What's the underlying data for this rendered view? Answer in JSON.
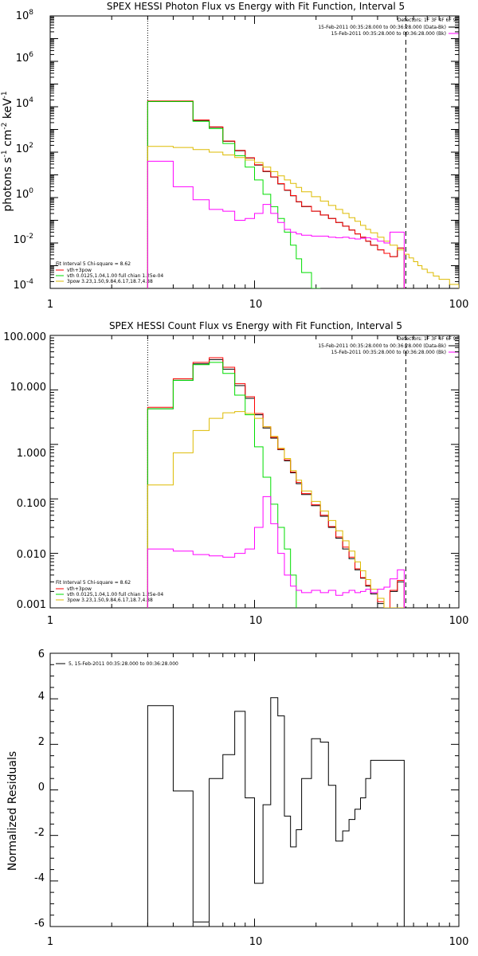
{
  "chart_data": [
    {
      "type": "line",
      "title": "SPEX HESSI Photon Flux vs Energy with Fit Function, Interval 5",
      "ylabel_parts": [
        "photons s",
        "-1",
        " cm",
        "-2",
        " keV",
        "-1"
      ],
      "xlabel": "",
      "xscale": "log",
      "yscale": "log",
      "xlim": [
        1,
        100
      ],
      "ylim": [
        0.0001,
        100000000
      ],
      "x_ticks": [
        "1",
        "10",
        "100"
      ],
      "y_ticks": [
        {
          "base": "10",
          "exp": "-4"
        },
        {
          "base": "10",
          "exp": "-2"
        },
        {
          "base": "10",
          "exp": "0"
        },
        {
          "base": "10",
          "exp": "2"
        },
        {
          "base": "10",
          "exp": "4"
        },
        {
          "base": "10",
          "exp": "6"
        },
        {
          "base": "10",
          "exp": "8"
        }
      ],
      "header_lines": [
        "Detectors: 1F 3F 4F 6F 9F",
        "15-Feb-2011 00:35:28.000 to 00:36:28.000 (Data-Bk)",
        "15-Feb-2011 00:35:28.000 to 00:36:28.000 (Bk)"
      ],
      "legend_lines": [
        "Fit Interval 5   Chi-square = 8.62",
        "vth+3pow",
        "vth 0.0125,1.04,1.00  full chian 1.25e-04",
        "3pow 3.23,1.50,9.84,6.17,18.7,4.88"
      ],
      "vlines": [
        {
          "x": 3,
          "style": "dotted"
        },
        {
          "x": 55,
          "style": "dashed"
        }
      ],
      "bin_edges": [
        3,
        4,
        5,
        6,
        7,
        8,
        9,
        10,
        11,
        12,
        13,
        14,
        15,
        16,
        17,
        19,
        21,
        23,
        25,
        27,
        29,
        31,
        33,
        35,
        37,
        40,
        43,
        46,
        50,
        54,
        57,
        60,
        63,
        66,
        70,
        75,
        80,
        90,
        100
      ],
      "series": [
        {
          "color": "#000000",
          "x_end": 54,
          "values": [
            17000,
            17000,
            2400,
            1250,
            300,
            115,
            55,
            27,
            14,
            8,
            4,
            2.1,
            1.2,
            0.65,
            0.4,
            0.25,
            0.17,
            0.12,
            0.08,
            0.055,
            0.037,
            0.025,
            0.018,
            0.012,
            0.008,
            0.005,
            0.0035,
            0.0025,
            0.006
          ]
        },
        {
          "color": "#ff0000",
          "x_end": 54,
          "values": [
            18000,
            18000,
            2600,
            1300,
            310,
            120,
            57,
            28,
            14.5,
            8.2,
            4.1,
            2.15,
            1.22,
            0.66,
            0.41,
            0.25,
            0.17,
            0.12,
            0.08,
            0.055,
            0.037,
            0.025,
            0.018,
            0.012,
            0.008,
            0.005,
            0.0035,
            0.0025,
            0.006
          ]
        },
        {
          "color": "#00dd00",
          "x_end": 21,
          "values": [
            17000,
            17000,
            2300,
            1100,
            240,
            70,
            22,
            6,
            1.4,
            0.4,
            0.12,
            0.03,
            0.008,
            0.002,
            0.0005,
            0.0001
          ]
        },
        {
          "color": "#ddbb00",
          "x_end": 100,
          "values": [
            180,
            160,
            130,
            100,
            75,
            58,
            45,
            35,
            22,
            14,
            9,
            6,
            4.2,
            2.8,
            1.8,
            1.1,
            0.7,
            0.45,
            0.3,
            0.2,
            0.13,
            0.09,
            0.06,
            0.04,
            0.028,
            0.018,
            0.012,
            0.008,
            0.005,
            0.0032,
            0.0022,
            0.0015,
            0.001,
            0.0007,
            0.0005,
            0.00035,
            0.00025,
            0.00015
          ]
        },
        {
          "color": "#ff00ff",
          "x_end": 54,
          "values": [
            40,
            3,
            0.8,
            0.3,
            0.25,
            0.1,
            0.12,
            0.2,
            0.5,
            0.2,
            0.08,
            0.04,
            0.03,
            0.025,
            0.022,
            0.02,
            0.02,
            0.018,
            0.017,
            0.018,
            0.016,
            0.015,
            0.016,
            0.017,
            0.015,
            0.012,
            0.01,
            0.03,
            0.03
          ]
        }
      ]
    },
    {
      "type": "line",
      "title": "SPEX HESSI Count Flux vs Energy with Fit Function, Interval 5",
      "xlabel": "",
      "xscale": "log",
      "yscale": "log",
      "xlim": [
        1,
        100
      ],
      "ylim": [
        0.001,
        100
      ],
      "x_ticks": [
        "1",
        "10",
        "100"
      ],
      "y_ticks": [
        "0.001",
        "0.010",
        "0.100",
        "1.000",
        "10.000",
        "100.000"
      ],
      "header_lines": [
        "Detectors: 1F 3F 4F 6F 9F",
        "15-Feb-2011 00:35:28.000 to 00:36:28.000 (Data-Bk)",
        "15-Feb-2011 00:35:28.000 to 00:36:28.000 (Bk)"
      ],
      "legend_lines": [
        "Fit Interval 5   Chi-square = 8.62",
        "vth+3pow",
        "vth 0.0125,1.04,1.00  full chian 1.25e-04",
        "3pow 3.23,1.50,9.84,6.17,18.7,4.88"
      ],
      "vlines": [
        {
          "x": 3,
          "style": "dotted"
        },
        {
          "x": 55,
          "style": "dashed"
        }
      ],
      "bin_edges": [
        3,
        4,
        5,
        6,
        7,
        8,
        9,
        10,
        11,
        12,
        13,
        14,
        15,
        16,
        17,
        19,
        21,
        23,
        25,
        27,
        29,
        31,
        33,
        35,
        37,
        40,
        43,
        46,
        50,
        54,
        57,
        60
      ],
      "series": [
        {
          "color": "#000000",
          "x_end": 54,
          "values": [
            4.5,
            15,
            30,
            36,
            24,
            12,
            7,
            3.5,
            2,
            1.3,
            0.8,
            0.5,
            0.3,
            0.19,
            0.12,
            0.075,
            0.048,
            0.03,
            0.019,
            0.012,
            0.008,
            0.005,
            0.0035,
            0.0025,
            0.0018,
            0.0012,
            0.001,
            0.002,
            0.003
          ]
        },
        {
          "color": "#ff0000",
          "x_end": 54,
          "values": [
            4.8,
            16,
            32,
            39,
            26,
            13,
            7.5,
            3.7,
            2.1,
            1.35,
            0.82,
            0.52,
            0.31,
            0.2,
            0.125,
            0.078,
            0.05,
            0.031,
            0.02,
            0.013,
            0.0085,
            0.0052,
            0.0036,
            0.0026,
            0.0019,
            0.0013,
            0.001,
            0.0021,
            0.0032
          ]
        },
        {
          "color": "#00dd00",
          "x_end": 16,
          "values": [
            4.5,
            15,
            29,
            32,
            20,
            8,
            3.5,
            0.9,
            0.25,
            0.08,
            0.03,
            0.012,
            0.004
          ]
        },
        {
          "color": "#ddbb00",
          "x_end": 54,
          "values": [
            0.18,
            0.7,
            1.8,
            3,
            3.8,
            4,
            3.7,
            3,
            2.1,
            1.4,
            0.85,
            0.55,
            0.33,
            0.22,
            0.14,
            0.09,
            0.06,
            0.04,
            0.026,
            0.017,
            0.011,
            0.007,
            0.0048,
            0.0033,
            0.0022,
            0.0015,
            0.001
          ]
        },
        {
          "color": "#ff00ff",
          "x_end": 54,
          "values": [
            0.012,
            0.011,
            0.0095,
            0.009,
            0.0085,
            0.01,
            0.012,
            0.03,
            0.11,
            0.035,
            0.01,
            0.004,
            0.0025,
            0.0021,
            0.0019,
            0.0021,
            0.0019,
            0.0021,
            0.0017,
            0.0019,
            0.0021,
            0.0019,
            0.002,
            0.0022,
            0.0019,
            0.0022,
            0.0024,
            0.0034,
            0.005
          ]
        }
      ]
    },
    {
      "type": "line",
      "title": "",
      "xlabel": "",
      "ylabel": "Normalized Residuals",
      "xscale": "log",
      "yscale": "linear",
      "xlim": [
        1,
        100
      ],
      "ylim": [
        -6,
        6
      ],
      "x_ticks": [
        "1",
        "10",
        "100"
      ],
      "y_ticks": [
        "-6",
        "-4",
        "-2",
        "0",
        "2",
        "4",
        "6"
      ],
      "legend_lines": [
        "5, 15-Feb-2011 00:35:28.000 to 00:36:28.000"
      ],
      "bin_edges": [
        3,
        4,
        5,
        6,
        7,
        8,
        9,
        10,
        11,
        12,
        13,
        14,
        15,
        16,
        17,
        19,
        21,
        23,
        25,
        27,
        29,
        31,
        33,
        35,
        37,
        40,
        43,
        46,
        50,
        54,
        57
      ],
      "series": [
        {
          "color": "#000000",
          "x_end": 54,
          "values": [
            3.7,
            -0.05,
            -5.8,
            0.5,
            1.55,
            3.45,
            -0.35,
            -4.1,
            -0.65,
            4.05,
            3.25,
            -1.15,
            -2.5,
            -1.75,
            0.5,
            2.25,
            2.1,
            0.2,
            -2.25,
            -1.8,
            -1.3,
            -0.85,
            -0.35,
            0.5,
            1.3
          ]
        }
      ]
    }
  ]
}
